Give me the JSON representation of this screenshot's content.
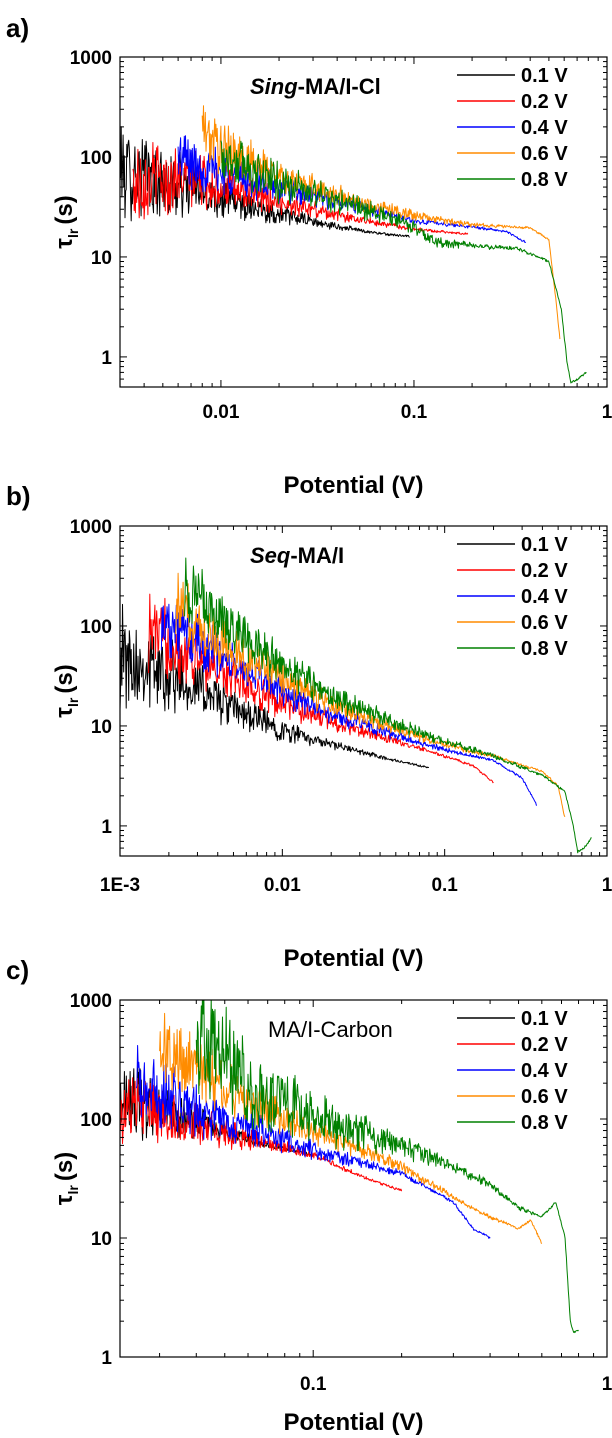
{
  "chart_data": [
    {
      "type": "line",
      "panel_label": "a)",
      "title_italic": "Sing",
      "title_rest": "-MA/I-Cl",
      "xlabel": "Potential (V)",
      "ylabel_main": "τ",
      "ylabel_sub": "lr",
      "ylabel_unit": "(s)",
      "x_scale": "log",
      "y_scale": "log",
      "xlim": [
        0.003,
        1
      ],
      "ylim": [
        0.5,
        1000
      ],
      "xticks": [
        {
          "v": 0.01,
          "label": "0.01"
        },
        {
          "v": 0.1,
          "label": "0.1"
        },
        {
          "v": 1,
          "label": "1"
        }
      ],
      "yticks": [
        {
          "v": 1,
          "label": "1"
        },
        {
          "v": 10,
          "label": "10"
        },
        {
          "v": 100,
          "label": "100"
        },
        {
          "v": 1000,
          "label": "1000"
        }
      ],
      "legend_position": "top-right",
      "series": [
        {
          "name": "0.1 V",
          "color": "#000000",
          "noise": 0.55,
          "points": [
            [
              0.003,
              80
            ],
            [
              0.005,
              55
            ],
            [
              0.007,
              48
            ],
            [
              0.01,
              40
            ],
            [
              0.02,
              27
            ],
            [
              0.04,
              20
            ],
            [
              0.07,
              17
            ],
            [
              0.095,
              16
            ]
          ]
        },
        {
          "name": "0.2 V",
          "color": "#ff0000",
          "noise": 0.45,
          "points": [
            [
              0.0035,
              55
            ],
            [
              0.005,
              60
            ],
            [
              0.007,
              60
            ],
            [
              0.01,
              52
            ],
            [
              0.02,
              36
            ],
            [
              0.05,
              24
            ],
            [
              0.1,
              19
            ],
            [
              0.19,
              17
            ]
          ]
        },
        {
          "name": "0.4 V",
          "color": "#0000ff",
          "noise": 0.3,
          "points": [
            [
              0.006,
              100
            ],
            [
              0.008,
              80
            ],
            [
              0.01,
              70
            ],
            [
              0.02,
              48
            ],
            [
              0.05,
              32
            ],
            [
              0.1,
              23
            ],
            [
              0.2,
              20
            ],
            [
              0.3,
              18
            ],
            [
              0.38,
              14
            ]
          ]
        },
        {
          "name": "0.6 V",
          "color": "#ff8c00",
          "noise": 0.3,
          "points": [
            [
              0.008,
              200
            ],
            [
              0.01,
              120
            ],
            [
              0.02,
              65
            ],
            [
              0.05,
              36
            ],
            [
              0.1,
              26
            ],
            [
              0.2,
              21
            ],
            [
              0.4,
              19.5
            ],
            [
              0.5,
              15
            ],
            [
              0.55,
              3
            ],
            [
              0.57,
              1.5
            ]
          ]
        },
        {
          "name": "0.8 V",
          "color": "#008000",
          "noise": 0.3,
          "points": [
            [
              0.01,
              110
            ],
            [
              0.02,
              55
            ],
            [
              0.05,
              32
            ],
            [
              0.1,
              20
            ],
            [
              0.13,
              14
            ],
            [
              0.2,
              13
            ],
            [
              0.35,
              12
            ],
            [
              0.5,
              9
            ],
            [
              0.58,
              3
            ],
            [
              0.62,
              0.9
            ],
            [
              0.65,
              0.55
            ],
            [
              0.7,
              0.6
            ],
            [
              0.78,
              0.7
            ]
          ]
        }
      ]
    },
    {
      "type": "line",
      "panel_label": "b)",
      "title_italic": "Seq",
      "title_rest": "-MA/I",
      "xlabel": "Potential (V)",
      "ylabel_main": "τ",
      "ylabel_sub": "lr",
      "ylabel_unit": "(s)",
      "x_scale": "log",
      "y_scale": "log",
      "xlim": [
        0.001,
        1
      ],
      "ylim": [
        0.5,
        1000
      ],
      "xticks": [
        {
          "v": 0.001,
          "label": "1E-3"
        },
        {
          "v": 0.01,
          "label": "0.01"
        },
        {
          "v": 0.1,
          "label": "0.1"
        },
        {
          "v": 1,
          "label": "1"
        }
      ],
      "yticks": [
        {
          "v": 1,
          "label": "1"
        },
        {
          "v": 10,
          "label": "10"
        },
        {
          "v": 100,
          "label": "100"
        },
        {
          "v": 1000,
          "label": "1000"
        }
      ],
      "legend_position": "top-right",
      "series": [
        {
          "name": "0.1 V",
          "color": "#000000",
          "noise": 0.55,
          "points": [
            [
              0.001,
              50
            ],
            [
              0.0015,
              40
            ],
            [
              0.003,
              25
            ],
            [
              0.005,
              15
            ],
            [
              0.01,
              9
            ],
            [
              0.02,
              6.5
            ],
            [
              0.05,
              4.5
            ],
            [
              0.08,
              3.8
            ]
          ]
        },
        {
          "name": "0.2 V",
          "color": "#ff0000",
          "noise": 0.45,
          "points": [
            [
              0.0015,
              90
            ],
            [
              0.003,
              50
            ],
            [
              0.005,
              30
            ],
            [
              0.01,
              17
            ],
            [
              0.02,
              11
            ],
            [
              0.05,
              7
            ],
            [
              0.1,
              5
            ],
            [
              0.15,
              4
            ],
            [
              0.2,
              2.7
            ]
          ]
        },
        {
          "name": "0.4 V",
          "color": "#0000ff",
          "noise": 0.35,
          "points": [
            [
              0.0018,
              120
            ],
            [
              0.003,
              70
            ],
            [
              0.005,
              40
            ],
            [
              0.01,
              22
            ],
            [
              0.02,
              13
            ],
            [
              0.05,
              8
            ],
            [
              0.1,
              5.8
            ],
            [
              0.2,
              4.5
            ],
            [
              0.3,
              3
            ],
            [
              0.37,
              1.6
            ]
          ]
        },
        {
          "name": "0.6 V",
          "color": "#ff8c00",
          "noise": 0.35,
          "points": [
            [
              0.0022,
              170
            ],
            [
              0.003,
              100
            ],
            [
              0.005,
              55
            ],
            [
              0.01,
              30
            ],
            [
              0.02,
              16
            ],
            [
              0.05,
              9.5
            ],
            [
              0.1,
              6.5
            ],
            [
              0.2,
              5
            ],
            [
              0.4,
              3.5
            ],
            [
              0.5,
              2.5
            ],
            [
              0.55,
              1.2
            ]
          ]
        },
        {
          "name": "0.8 V",
          "color": "#008000",
          "noise": 0.35,
          "points": [
            [
              0.0025,
              250
            ],
            [
              0.004,
              130
            ],
            [
              0.007,
              65
            ],
            [
              0.01,
              40
            ],
            [
              0.02,
              20
            ],
            [
              0.05,
              10.5
            ],
            [
              0.1,
              7
            ],
            [
              0.2,
              5
            ],
            [
              0.4,
              3.2
            ],
            [
              0.55,
              2.2
            ],
            [
              0.62,
              1
            ],
            [
              0.66,
              0.55
            ],
            [
              0.72,
              0.6
            ],
            [
              0.8,
              0.75
            ]
          ]
        }
      ]
    },
    {
      "type": "line",
      "panel_label": "c)",
      "title_italic": "",
      "title_rest": "MA/I-Carbon",
      "xlabel": "Potential (V)",
      "ylabel_main": "τ",
      "ylabel_sub": "lr",
      "ylabel_unit": "(s)",
      "x_scale": "log",
      "y_scale": "log",
      "xlim": [
        0.022,
        1
      ],
      "ylim": [
        1,
        1000
      ],
      "xticks": [
        {
          "v": 0.1,
          "label": "0.1"
        },
        {
          "v": 1,
          "label": "1"
        }
      ],
      "yticks": [
        {
          "v": 1,
          "label": "1"
        },
        {
          "v": 10,
          "label": "10"
        },
        {
          "v": 100,
          "label": "100"
        },
        {
          "v": 1000,
          "label": "1000"
        }
      ],
      "legend_position": "top-right",
      "series": [
        {
          "name": "0.1 V",
          "color": "#000000",
          "noise": 0.4,
          "points": [
            [
              0.022,
              150
            ],
            [
              0.03,
              120
            ],
            [
              0.05,
              80
            ],
            [
              0.07,
              60
            ],
            [
              0.1,
              50
            ]
          ]
        },
        {
          "name": "0.2 V",
          "color": "#ff0000",
          "noise": 0.35,
          "points": [
            [
              0.022,
              120
            ],
            [
              0.03,
              110
            ],
            [
              0.05,
              75
            ],
            [
              0.1,
              50
            ],
            [
              0.15,
              32
            ],
            [
              0.2,
              25
            ]
          ]
        },
        {
          "name": "0.4 V",
          "color": "#0000ff",
          "noise": 0.35,
          "points": [
            [
              0.025,
              200
            ],
            [
              0.04,
              120
            ],
            [
              0.07,
              75
            ],
            [
              0.1,
              55
            ],
            [
              0.2,
              35
            ],
            [
              0.3,
              20
            ],
            [
              0.35,
              12
            ],
            [
              0.4,
              10
            ]
          ]
        },
        {
          "name": "0.6 V",
          "color": "#ff8c00",
          "noise": 0.35,
          "points": [
            [
              0.03,
              400
            ],
            [
              0.05,
              180
            ],
            [
              0.1,
              80
            ],
            [
              0.2,
              40
            ],
            [
              0.3,
              22
            ],
            [
              0.4,
              15
            ],
            [
              0.5,
              12
            ],
            [
              0.55,
              14
            ],
            [
              0.6,
              9
            ]
          ]
        },
        {
          "name": "0.8 V",
          "color": "#008000",
          "noise": 0.55,
          "points": [
            [
              0.04,
              500
            ],
            [
              0.06,
              200
            ],
            [
              0.1,
              100
            ],
            [
              0.2,
              60
            ],
            [
              0.3,
              40
            ],
            [
              0.4,
              28
            ],
            [
              0.5,
              18
            ],
            [
              0.6,
              15
            ],
            [
              0.67,
              20
            ],
            [
              0.72,
              10
            ],
            [
              0.75,
              2
            ],
            [
              0.77,
              1.6
            ],
            [
              0.8,
              1.7
            ]
          ]
        }
      ]
    }
  ]
}
